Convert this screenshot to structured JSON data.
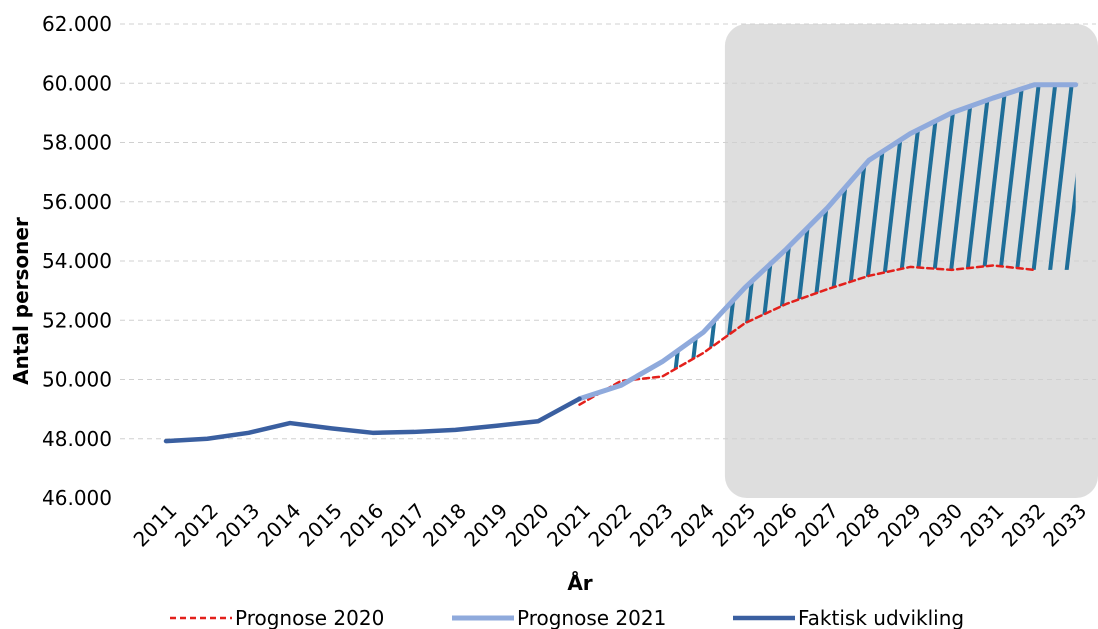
{
  "chart_data": {
    "type": "line",
    "xlabel": "År",
    "ylabel": "Antal personer",
    "ylim": [
      46000,
      62000
    ],
    "yticks": [
      46000,
      48000,
      50000,
      52000,
      54000,
      56000,
      58000,
      60000,
      62000
    ],
    "ytick_labels": [
      "46.000",
      "48.000",
      "50.000",
      "52.000",
      "54.000",
      "56.000",
      "58.000",
      "60.000",
      "62.000"
    ],
    "x": [
      "2011",
      "2012",
      "2013",
      "2014",
      "2015",
      "2016",
      "2017",
      "2018",
      "2019",
      "2020",
      "2021",
      "2022",
      "2023",
      "2024",
      "2025",
      "2026",
      "2027",
      "2028",
      "2029",
      "2030",
      "2031",
      "2032",
      "2033"
    ],
    "grid": true,
    "legend_position": "bottom",
    "highlight_region": {
      "from": "2025",
      "to": "2033",
      "color": "#dedede"
    },
    "hatch_between": {
      "upper": "Prognose 2021",
      "lower": "Prognose 2020",
      "color": "#1f6e99",
      "from": "2023",
      "to": "2033"
    },
    "series": [
      {
        "name": "Prognose 2020",
        "color": "#e3201b",
        "style": "dashed",
        "values": [
          null,
          null,
          null,
          null,
          null,
          null,
          null,
          null,
          null,
          null,
          49150,
          49950,
          50100,
          50900,
          51900,
          52550,
          53050,
          53500,
          53800,
          53700,
          53850,
          53700,
          null
        ]
      },
      {
        "name": "Prognose 2021",
        "color": "#8faadc",
        "style": "solid",
        "values": [
          null,
          null,
          null,
          null,
          null,
          null,
          null,
          null,
          null,
          null,
          49350,
          49800,
          50600,
          51600,
          53100,
          54400,
          55800,
          57400,
          58300,
          59000,
          59500,
          59950,
          59950
        ]
      },
      {
        "name": "Faktisk udvikling",
        "color": "#3a5fa0",
        "style": "solid",
        "values": [
          47920,
          48000,
          48200,
          48530,
          48350,
          48200,
          48230,
          48300,
          48440,
          48590,
          49350,
          null,
          null,
          null,
          null,
          null,
          null,
          null,
          null,
          null,
          null,
          null,
          null
        ]
      }
    ]
  }
}
